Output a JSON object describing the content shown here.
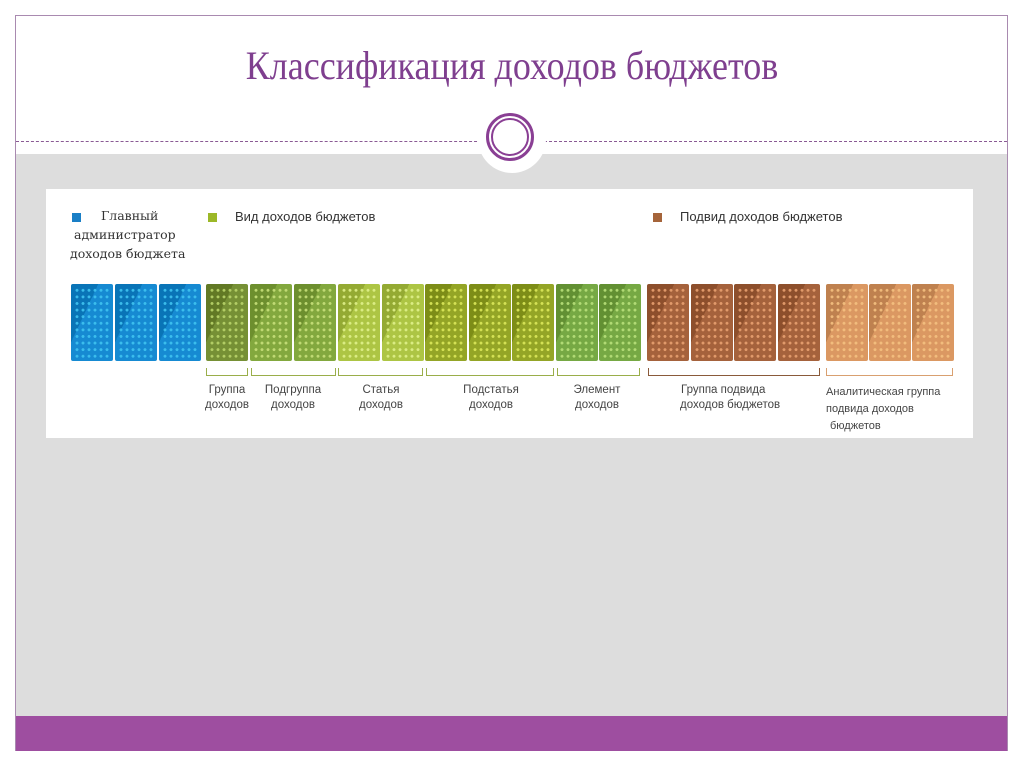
{
  "slide": {
    "title": "Классификация доходов бюджетов",
    "colors": {
      "title": "#7f3f8f",
      "frame": "#a98ab0",
      "background_gray": "#dddddd",
      "footer": "#9e4ea0",
      "ornament": "#8a3f94"
    }
  },
  "diagram": {
    "legend": [
      {
        "label": "Главный администратор доходов бюджета",
        "lines": [
          "Главный",
          "администратор",
          "доходов бюджета"
        ],
        "color": "#1a7fc6"
      },
      {
        "label": "Вид доходов бюджетов",
        "color": "#9cb828"
      },
      {
        "label": "Подвид доходов бюджетов",
        "color": "#a5643a"
      }
    ],
    "blocks": [
      {
        "group": "admin",
        "color": "#0a84d0",
        "dot": "#3fc3f0"
      },
      {
        "group": "admin",
        "color": "#0a84d0",
        "dot": "#3fc3f0"
      },
      {
        "group": "admin",
        "color": "#0a84d0",
        "dot": "#3fc3f0"
      },
      {
        "group": "Группа доходов",
        "color": "#6f8a2a",
        "dot": "#b9d46a"
      },
      {
        "group": "Подгруппа доходов",
        "color": "#7ca334",
        "dot": "#c7e07a"
      },
      {
        "group": "Подгруппа доходов",
        "color": "#7ca334",
        "dot": "#c7e07a"
      },
      {
        "group": "Статья доходов",
        "color": "#a9c23a",
        "dot": "#dff08a"
      },
      {
        "group": "Статья доходов",
        "color": "#a9c23a",
        "dot": "#dff08a"
      },
      {
        "group": "Подстатья доходов",
        "color": "#8ea01a",
        "dot": "#dbe85a"
      },
      {
        "group": "Подстатья доходов",
        "color": "#8ea01a",
        "dot": "#dbe85a"
      },
      {
        "group": "Подстатья доходов",
        "color": "#8ea01a",
        "dot": "#dbe85a"
      },
      {
        "group": "Элемент доходов",
        "color": "#6fa43a",
        "dot": "#b8e07a"
      },
      {
        "group": "Элемент доходов",
        "color": "#6fa43a",
        "dot": "#b8e07a"
      },
      {
        "group": "Группа подвида доходов бюджетов",
        "color": "#a05a32",
        "dot": "#e8a070"
      },
      {
        "group": "Группа подвида доходов бюджетов",
        "color": "#a05a32",
        "dot": "#e8a070"
      },
      {
        "group": "Группа подвида доходов бюджетов",
        "color": "#a05a32",
        "dot": "#e8a070"
      },
      {
        "group": "Группа подвида доходов бюджетов",
        "color": "#a05a32",
        "dot": "#e8a070"
      },
      {
        "group": "Аналитическая группа подвида доходов бюджетов",
        "color": "#d9935a",
        "dot": "#f4c080"
      },
      {
        "group": "Аналитическая группа подвида доходов бюджетов",
        "color": "#d9935a",
        "dot": "#f4c080"
      },
      {
        "group": "Аналитическая группа подвида доходов бюджетов",
        "color": "#d9935a",
        "dot": "#f4c080"
      }
    ],
    "groups": [
      {
        "label_line1": "Группа",
        "label_line2": "доходов",
        "bracket_color": "#9aae4a"
      },
      {
        "label_line1": "Подгруппа",
        "label_line2": "доходов",
        "bracket_color": "#9aae4a"
      },
      {
        "label_line1": "Статья",
        "label_line2": "доходов",
        "bracket_color": "#9aae4a"
      },
      {
        "label_line1": "Подстатья",
        "label_line2": "доходов",
        "bracket_color": "#9aae4a"
      },
      {
        "label_line1": "Элемент",
        "label_line2": "доходов",
        "bracket_color": "#9aae4a"
      },
      {
        "label_line1": "Группа подвида",
        "label_line2": "доходов бюджетов",
        "bracket_color": "#8a5a3a"
      },
      {
        "label_line1": "Аналитическая группа",
        "label_line2": "подвида доходов",
        "label_line3": "бюджетов",
        "bracket_color": "#d9a070"
      }
    ]
  }
}
